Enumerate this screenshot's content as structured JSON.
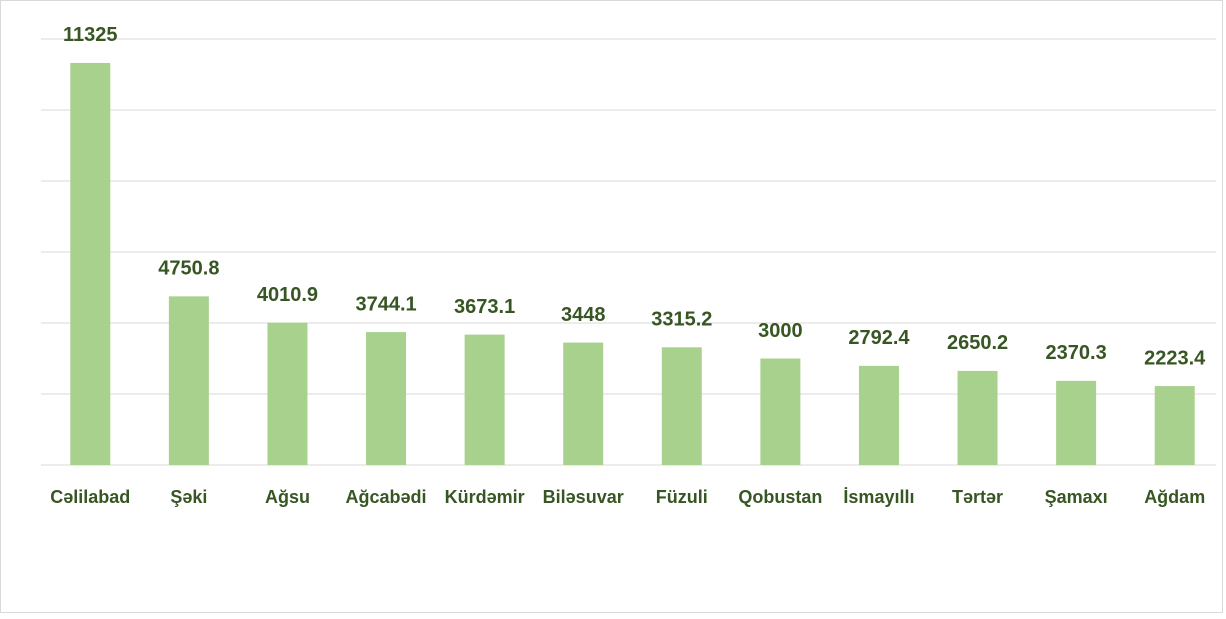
{
  "chart_data": {
    "type": "bar",
    "categories": [
      "Cəlilabad",
      "Şəki",
      "Ağsu",
      "Ağcabədi",
      "Kürdəmir",
      "Biləsuvar",
      "Füzuli",
      "Qobustan",
      "İsmayıllı",
      "Tərtər",
      "Şamaxı",
      "Ağdam"
    ],
    "values": [
      11325,
      4750.8,
      4010.9,
      3744.1,
      3673.1,
      3448,
      3315.2,
      3000,
      2792.4,
      2650.2,
      2370.3,
      2223.4
    ],
    "color": "#a9d18e",
    "ylim": [
      0,
      12000
    ],
    "yticks": [
      0,
      2000,
      4000,
      6000,
      8000,
      10000,
      12000
    ],
    "grid": true
  }
}
